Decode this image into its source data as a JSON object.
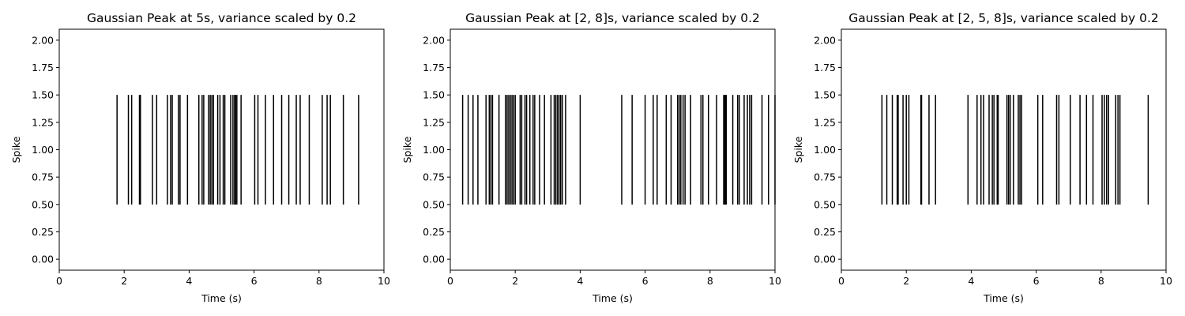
{
  "chart_data": [
    {
      "type": "eventplot",
      "title": "Gaussian Peak at 5s, variance scaled by 0.2",
      "xlabel": "Time (s)",
      "ylabel": "Spike",
      "xlim": [
        0,
        10
      ],
      "ylim": [
        -0.1,
        2.1
      ],
      "xticks": [
        "0",
        "2",
        "4",
        "6",
        "8",
        "10"
      ],
      "yticks": [
        "0.00",
        "0.25",
        "0.50",
        "0.75",
        "1.00",
        "1.25",
        "1.50",
        "1.75",
        "2.00"
      ],
      "line_span": [
        0.5,
        1.5
      ],
      "color": "#000000",
      "spikes": [
        1.78,
        2.13,
        2.23,
        2.47,
        2.5,
        2.87,
        3.0,
        3.33,
        3.43,
        3.48,
        3.67,
        3.72,
        3.95,
        4.3,
        4.4,
        4.45,
        4.6,
        4.65,
        4.7,
        4.75,
        4.88,
        4.95,
        5.05,
        5.1,
        5.28,
        5.35,
        5.4,
        5.43,
        5.47,
        5.6,
        6.02,
        6.12,
        6.35,
        6.6,
        6.85,
        7.07,
        7.3,
        7.42,
        7.7,
        8.1,
        8.25,
        8.35,
        8.75,
        9.22
      ]
    },
    {
      "type": "eventplot",
      "title": "Gaussian Peak at [2, 8]s, variance scaled by 0.2",
      "xlabel": "Time (s)",
      "ylabel": "Spike",
      "xlim": [
        0,
        10
      ],
      "ylim": [
        -0.1,
        2.1
      ],
      "xticks": [
        "0",
        "2",
        "4",
        "6",
        "8",
        "10"
      ],
      "yticks": [
        "0.00",
        "0.25",
        "0.50",
        "0.75",
        "1.00",
        "1.25",
        "1.50",
        "1.75",
        "2.00"
      ],
      "line_span": [
        0.5,
        1.5
      ],
      "color": "#000000",
      "spikes": [
        0.38,
        0.55,
        0.7,
        0.85,
        1.1,
        1.2,
        1.25,
        1.3,
        1.5,
        1.7,
        1.75,
        1.8,
        1.85,
        1.9,
        1.95,
        2.0,
        2.15,
        2.2,
        2.3,
        2.35,
        2.45,
        2.55,
        2.6,
        2.75,
        2.9,
        3.1,
        3.2,
        3.25,
        3.3,
        3.35,
        3.4,
        3.45,
        3.55,
        4.0,
        5.28,
        5.6,
        6.0,
        6.25,
        6.37,
        6.65,
        6.8,
        7.0,
        7.05,
        7.1,
        7.17,
        7.23,
        7.4,
        7.72,
        7.78,
        7.95,
        8.2,
        8.42,
        8.45,
        8.48,
        8.5,
        8.7,
        8.85,
        8.9,
        9.05,
        9.15,
        9.22,
        9.28,
        9.6,
        9.8,
        10.0
      ]
    },
    {
      "type": "eventplot",
      "title": "Gaussian Peak at [2, 5, 8]s, variance scaled by 0.2",
      "xlabel": "Time (s)",
      "ylabel": "Spike",
      "xlim": [
        0,
        10
      ],
      "ylim": [
        -0.1,
        2.1
      ],
      "xticks": [
        "0",
        "2",
        "4",
        "6",
        "8",
        "10"
      ],
      "yticks": [
        "0.00",
        "0.25",
        "0.50",
        "0.75",
        "1.00",
        "1.25",
        "1.50",
        "1.75",
        "2.00"
      ],
      "line_span": [
        0.5,
        1.5
      ],
      "color": "#000000",
      "spikes": [
        1.25,
        1.4,
        1.57,
        1.72,
        1.75,
        1.9,
        2.0,
        2.08,
        2.45,
        2.47,
        2.7,
        2.9,
        3.9,
        4.18,
        4.3,
        4.38,
        4.55,
        4.65,
        4.7,
        4.8,
        4.83,
        5.1,
        5.15,
        5.2,
        5.3,
        5.45,
        5.5,
        5.55,
        6.05,
        6.2,
        6.63,
        6.7,
        7.05,
        7.35,
        7.55,
        7.75,
        8.03,
        8.1,
        8.17,
        8.23,
        8.45,
        8.52,
        8.58,
        9.45
      ]
    }
  ]
}
